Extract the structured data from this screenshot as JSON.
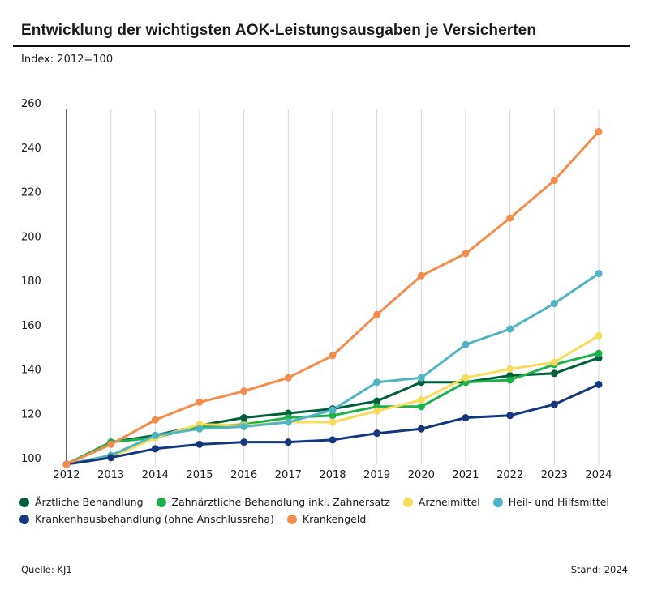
{
  "header": {
    "title": "Entwicklung der wichtigsten AOK-Leistungsausgaben je Versicherten",
    "subtitle": "Index: 2012=100"
  },
  "footer": {
    "source": "Quelle: KJ1",
    "date": "Stand: 2024"
  },
  "chart_data": {
    "type": "line",
    "title": "Entwicklung der wichtigsten AOK-Leistungsausgaben je Versicherten",
    "subtitle": "Index: 2012=100",
    "xlabel": "",
    "ylabel": "",
    "x": [
      "2012",
      "2013",
      "2014",
      "2015",
      "2016",
      "2017",
      "2018",
      "2019",
      "2020",
      "2021",
      "2022",
      "2023",
      "2024"
    ],
    "ylim": [
      100,
      260
    ],
    "yticks": [
      "100",
      "120",
      "140",
      "160",
      "180",
      "200",
      "220",
      "240",
      "260"
    ],
    "grid": "vertical",
    "legend_position": "bottom",
    "series": [
      {
        "name": "Ärztliche Behandlung",
        "color": "#005E3A",
        "values": [
          100,
          110,
          113,
          117.5,
          121,
          123,
          125,
          128.5,
          137,
          137,
          140,
          141,
          148
        ]
      },
      {
        "name": "Zahnärztliche Behandlung inkl. Zahnersatz",
        "color": "#1DB14B",
        "values": [
          100,
          110,
          112,
          117,
          118,
          121,
          122,
          126,
          126,
          137,
          138,
          145,
          150
        ]
      },
      {
        "name": "Arzneimittel",
        "color": "#F5DC5A",
        "values": [
          100,
          103,
          112,
          118,
          117.5,
          119,
          119,
          124,
          129,
          139,
          143,
          146,
          158
        ]
      },
      {
        "name": "Heil- und Hilfsmittel",
        "color": "#50B4C3",
        "values": [
          100,
          104,
          113,
          116,
          117,
          119,
          124.5,
          137,
          139,
          154,
          161,
          172.5,
          186
        ]
      },
      {
        "name": "Krankenhausbehandlung (ohne Anschlussreha)",
        "color": "#14377D",
        "values": [
          100,
          103,
          107,
          109,
          110,
          110,
          111,
          114,
          116,
          121,
          122,
          127,
          136
        ]
      },
      {
        "name": "Krankengeld",
        "color": "#F58C4B",
        "values": [
          100,
          109,
          120,
          128,
          133,
          139,
          149,
          167.5,
          185,
          195,
          211,
          228,
          250
        ]
      }
    ]
  },
  "legend": {
    "rows": [
      [
        0,
        1,
        2,
        3
      ],
      [
        4,
        5
      ]
    ]
  }
}
